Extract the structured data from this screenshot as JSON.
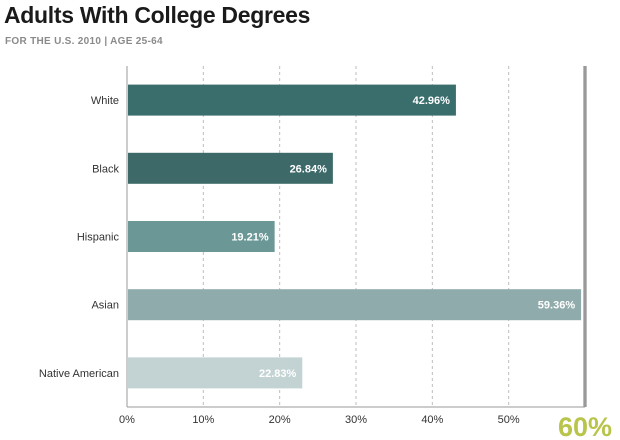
{
  "title": "Adults With College Degrees",
  "subtitle": "FOR THE U.S. 2010 | AGE 25-64",
  "chart_data": {
    "type": "bar",
    "orientation": "horizontal",
    "categories": [
      "White",
      "Black",
      "Hispanic",
      "Asian",
      "Native American"
    ],
    "values": [
      42.96,
      26.84,
      19.21,
      59.36,
      22.83
    ],
    "value_labels": [
      "42.96%",
      "26.84%",
      "19.21%",
      "59.36%",
      "22.83%"
    ],
    "bar_colors": [
      "#3a6e6d",
      "#3d6a69",
      "#6b9896",
      "#90abac",
      "#c3d3d3"
    ],
    "xlim": [
      0,
      60
    ],
    "x_ticks": [
      0,
      10,
      20,
      30,
      40,
      50
    ],
    "x_tick_labels": [
      "0%",
      "10%",
      "20%",
      "30%",
      "40%",
      "50%"
    ],
    "grid": "vertical dashed",
    "target_value": 60,
    "target_label": "60%",
    "target_color": "#b8c44a"
  }
}
